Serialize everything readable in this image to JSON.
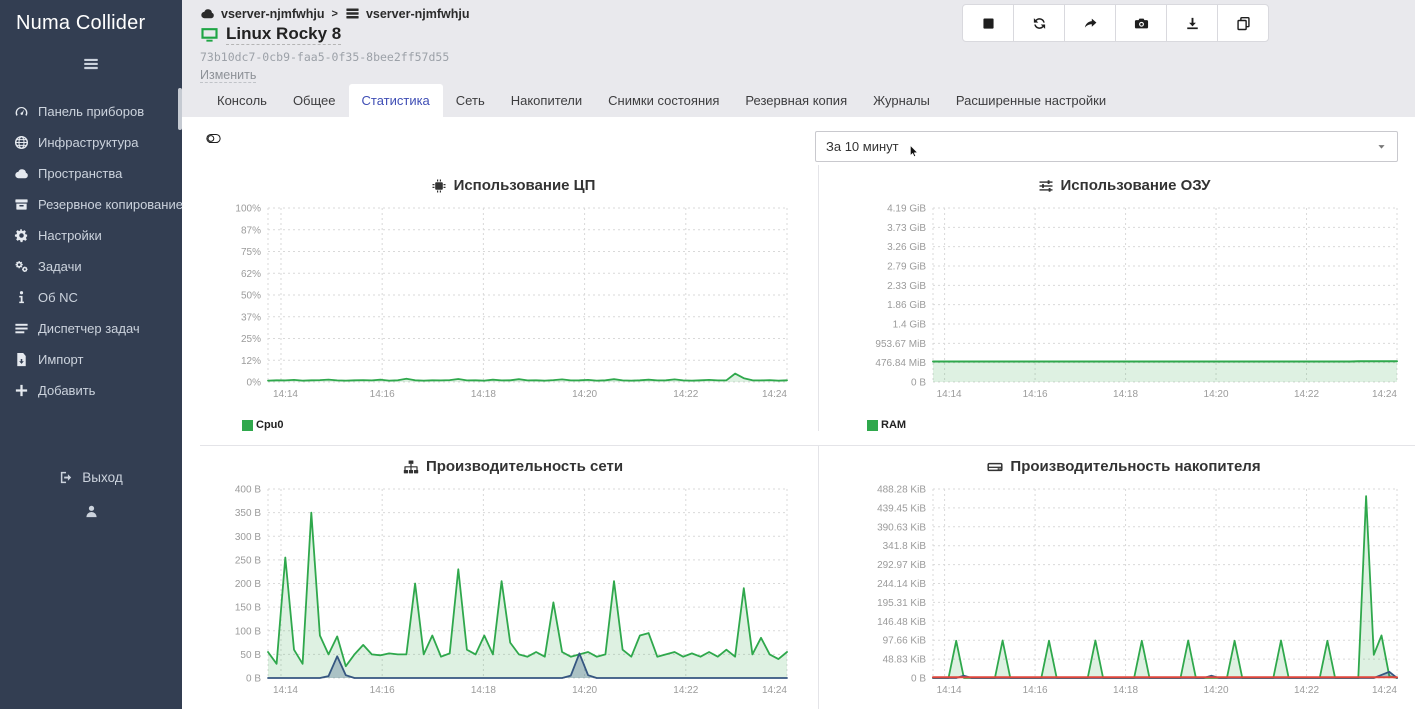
{
  "app": {
    "name": "Numa Collider"
  },
  "sidebar": {
    "items": [
      {
        "label": "Панель приборов",
        "icon": "gauge"
      },
      {
        "label": "Инфраструктура",
        "icon": "globe"
      },
      {
        "label": "Пространства",
        "icon": "cloud"
      },
      {
        "label": "Резервное копирование",
        "icon": "archive"
      },
      {
        "label": "Настройки",
        "icon": "gear"
      },
      {
        "label": "Задачи",
        "icon": "gears"
      },
      {
        "label": "Об NC",
        "icon": "info"
      },
      {
        "label": "Диспетчер задач",
        "icon": "list"
      },
      {
        "label": "Импорт",
        "icon": "import"
      },
      {
        "label": "Добавить",
        "icon": "plus"
      }
    ],
    "logout_label": "Выход"
  },
  "header": {
    "breadcrumb": {
      "pool": "vserver-njmfwhju",
      "separator": ">",
      "host": "vserver-njmfwhju"
    },
    "vm_name": "Linux Rocky 8",
    "uuid": "73b10dc7-0cb9-faa5-0f35-8bee2ff57d55",
    "edit_label": "Изменить",
    "toolbar_buttons": [
      {
        "name": "stop",
        "icon": "stop"
      },
      {
        "name": "restart",
        "icon": "refresh"
      },
      {
        "name": "migrate",
        "icon": "share"
      },
      {
        "name": "snapshot",
        "icon": "camera"
      },
      {
        "name": "export",
        "icon": "download"
      },
      {
        "name": "copy",
        "icon": "copy"
      }
    ]
  },
  "tabs": {
    "active": "Статистика",
    "items": [
      "Консоль",
      "Общее",
      "Статистика",
      "Сеть",
      "Накопители",
      "Снимки состояния",
      "Резервная копия",
      "Журналы",
      "Расширенные настройки"
    ]
  },
  "controls": {
    "time_range": "За 10 минут"
  },
  "colors": {
    "green": "#2fa84c",
    "blue": "#355680",
    "red": "#e0463c",
    "accent": "#3f4eb5",
    "sidebar_bg": "#333e52"
  },
  "chart_data": [
    {
      "id": "cpu",
      "type": "area",
      "icon": "chip",
      "title": "Использование ЦП",
      "y_ticks": [
        "100%",
        "87%",
        "75%",
        "62%",
        "50%",
        "37%",
        "25%",
        "12%",
        "0%"
      ],
      "y_max": 100,
      "x_ticks": [
        "14:14",
        "14:16",
        "14:18",
        "14:20",
        "14:22",
        "14:24"
      ],
      "legend": [
        {
          "label": "Cpu0",
          "color": "#2fa84c"
        }
      ],
      "series": [
        {
          "name": "Cpu0",
          "color": "#2fa84c",
          "fill": "rgba(47,168,76,0.16)",
          "width": 1.8,
          "values": [
            0.8,
            1,
            0.9,
            1.2,
            0.8,
            1,
            1.1,
            1.4,
            0.9,
            0.8,
            1,
            1.1,
            0.9,
            1.3,
            0.8,
            1,
            1.9,
            1,
            0.8,
            1,
            0.9,
            1.1,
            1.7,
            0.9,
            1,
            0.8,
            1.3,
            0.9,
            1,
            1.6,
            0.9,
            1,
            0.8,
            1.1,
            1.5,
            0.9,
            1,
            1.2,
            0.8,
            1,
            1.6,
            0.9,
            0.8,
            1,
            1.3,
            0.9,
            1,
            1.5,
            0.9,
            0.8,
            1,
            1.2,
            0.9,
            1,
            4.8,
            2.2,
            1,
            0.9,
            1.1,
            0.8,
            1
          ]
        }
      ]
    },
    {
      "id": "ram",
      "type": "area",
      "icon": "sliders",
      "title": "Использование ОЗУ",
      "y_ticks": [
        "4.19 GiB",
        "3.73 GiB",
        "3.26 GiB",
        "2.79 GiB",
        "2.33 GiB",
        "1.86 GiB",
        "1.4 GiB",
        "953.67 MiB",
        "476.84 MiB",
        "0 B"
      ],
      "y_max": 4290.56,
      "y_unit": "MiB",
      "x_ticks": [
        "14:14",
        "14:16",
        "14:18",
        "14:20",
        "14:22",
        "14:24"
      ],
      "legend": [
        {
          "label": "RAM",
          "color": "#2fa84c"
        }
      ],
      "series": [
        {
          "name": "RAM",
          "color": "#2fa84c",
          "fill": "rgba(47,168,76,0.16)",
          "width": 2,
          "values": [
            505,
            505,
            505,
            505,
            505,
            505,
            505,
            505,
            505,
            505,
            505,
            505,
            505,
            505,
            505,
            505,
            505,
            505,
            505,
            505,
            505,
            505,
            505,
            505,
            505,
            505,
            505,
            505,
            505,
            505,
            505,
            505,
            505,
            505,
            505,
            505,
            505,
            505,
            505,
            505,
            505,
            505,
            505,
            505,
            505,
            505,
            505,
            505,
            505,
            505,
            505,
            505,
            505,
            505,
            505,
            514,
            514,
            514,
            514,
            514,
            514
          ]
        }
      ]
    },
    {
      "id": "net",
      "type": "area",
      "icon": "sitemap",
      "title": "Производительность сети",
      "y_ticks": [
        "400 B",
        "350 B",
        "300 B",
        "250 B",
        "200 B",
        "150 B",
        "100 B",
        "50 B",
        "0 B"
      ],
      "y_max": 400,
      "y_unit": "B",
      "x_ticks": [
        "14:14",
        "14:16",
        "14:18",
        "14:20",
        "14:22",
        "14:24"
      ],
      "legend": [],
      "series": [
        {
          "name": "transmission",
          "color": "#2fa84c",
          "fill": "rgba(47,168,76,0.16)",
          "width": 1.8,
          "values": [
            55,
            30,
            255,
            60,
            30,
            350,
            90,
            50,
            88,
            25,
            50,
            70,
            50,
            48,
            52,
            50,
            50,
            200,
            50,
            90,
            45,
            52,
            230,
            60,
            50,
            90,
            50,
            205,
            75,
            50,
            45,
            55,
            45,
            160,
            55,
            45,
            50,
            55,
            45,
            50,
            205,
            60,
            45,
            90,
            95,
            45,
            50,
            55,
            45,
            52,
            45,
            55,
            45,
            60,
            45,
            190,
            50,
            85,
            50,
            40,
            55
          ]
        },
        {
          "name": "reception",
          "color": "#355680",
          "fill": "rgba(53,86,128,0.3)",
          "width": 1.8,
          "values": [
            0,
            0,
            0,
            0,
            0,
            0,
            0,
            4,
            46,
            6,
            0,
            0,
            0,
            0,
            0,
            0,
            0,
            0,
            0,
            0,
            0,
            0,
            0,
            0,
            0,
            0,
            0,
            0,
            0,
            0,
            0,
            0,
            0,
            0,
            0,
            5,
            52,
            6,
            0,
            0,
            0,
            0,
            0,
            0,
            0,
            0,
            0,
            0,
            0,
            0,
            0,
            0,
            0,
            0,
            0,
            0,
            0,
            0,
            0,
            0,
            0
          ]
        }
      ]
    },
    {
      "id": "disk",
      "type": "area",
      "icon": "hdd",
      "title": "Производительность накопителя",
      "y_ticks": [
        "488.28 KiB",
        "439.45 KiB",
        "390.63 KiB",
        "341.8 KiB",
        "292.97 KiB",
        "244.14 KiB",
        "195.31 KiB",
        "146.48 KiB",
        "97.66 KiB",
        "48.83 KiB",
        "0 B"
      ],
      "y_max": 488.28,
      "y_unit": "KiB",
      "x_ticks": [
        "14:14",
        "14:16",
        "14:18",
        "14:20",
        "14:22",
        "14:24"
      ],
      "legend": [],
      "series": [
        {
          "name": "read",
          "color": "#2fa84c",
          "fill": "rgba(47,168,76,0.16)",
          "width": 1.8,
          "values": [
            0,
            0,
            0,
            96,
            0,
            0,
            0,
            0,
            0,
            97,
            0,
            0,
            0,
            0,
            0,
            96,
            0,
            0,
            0,
            0,
            0,
            97,
            0,
            0,
            0,
            0,
            0,
            96,
            0,
            0,
            0,
            0,
            0,
            97,
            0,
            0,
            0,
            0,
            0,
            96,
            0,
            0,
            0,
            0,
            0,
            97,
            0,
            0,
            0,
            0,
            0,
            96,
            0,
            0,
            0,
            0,
            470,
            60,
            110,
            5,
            0
          ]
        },
        {
          "name": "write-blue",
          "color": "#355680",
          "fill": "rgba(53,86,128,0.3)",
          "width": 1.8,
          "values": [
            0,
            0,
            0,
            0,
            6,
            0,
            0,
            0,
            0,
            0,
            0,
            0,
            0,
            0,
            0,
            0,
            0,
            0,
            0,
            0,
            0,
            0,
            0,
            0,
            0,
            0,
            0,
            0,
            0,
            0,
            0,
            0,
            0,
            0,
            0,
            0,
            6,
            0,
            0,
            0,
            0,
            0,
            0,
            0,
            0,
            0,
            0,
            0,
            0,
            0,
            0,
            0,
            0,
            0,
            0,
            0,
            0,
            0,
            8,
            16,
            0
          ]
        },
        {
          "name": "write",
          "color": "#e0463c",
          "fill": null,
          "width": 2,
          "values": [
            2,
            2,
            2,
            2,
            2,
            2,
            2,
            2,
            2,
            2,
            2,
            2,
            2,
            2,
            2,
            2,
            2,
            2,
            2,
            2,
            2,
            2,
            2,
            2,
            2,
            2,
            2,
            2,
            2,
            2,
            2,
            2,
            2,
            2,
            2,
            2,
            2,
            2,
            2,
            2,
            2,
            2,
            2,
            2,
            2,
            2,
            2,
            2,
            2,
            2,
            2,
            2,
            2,
            2,
            2,
            2,
            2,
            2,
            2,
            2,
            2
          ]
        }
      ]
    }
  ]
}
